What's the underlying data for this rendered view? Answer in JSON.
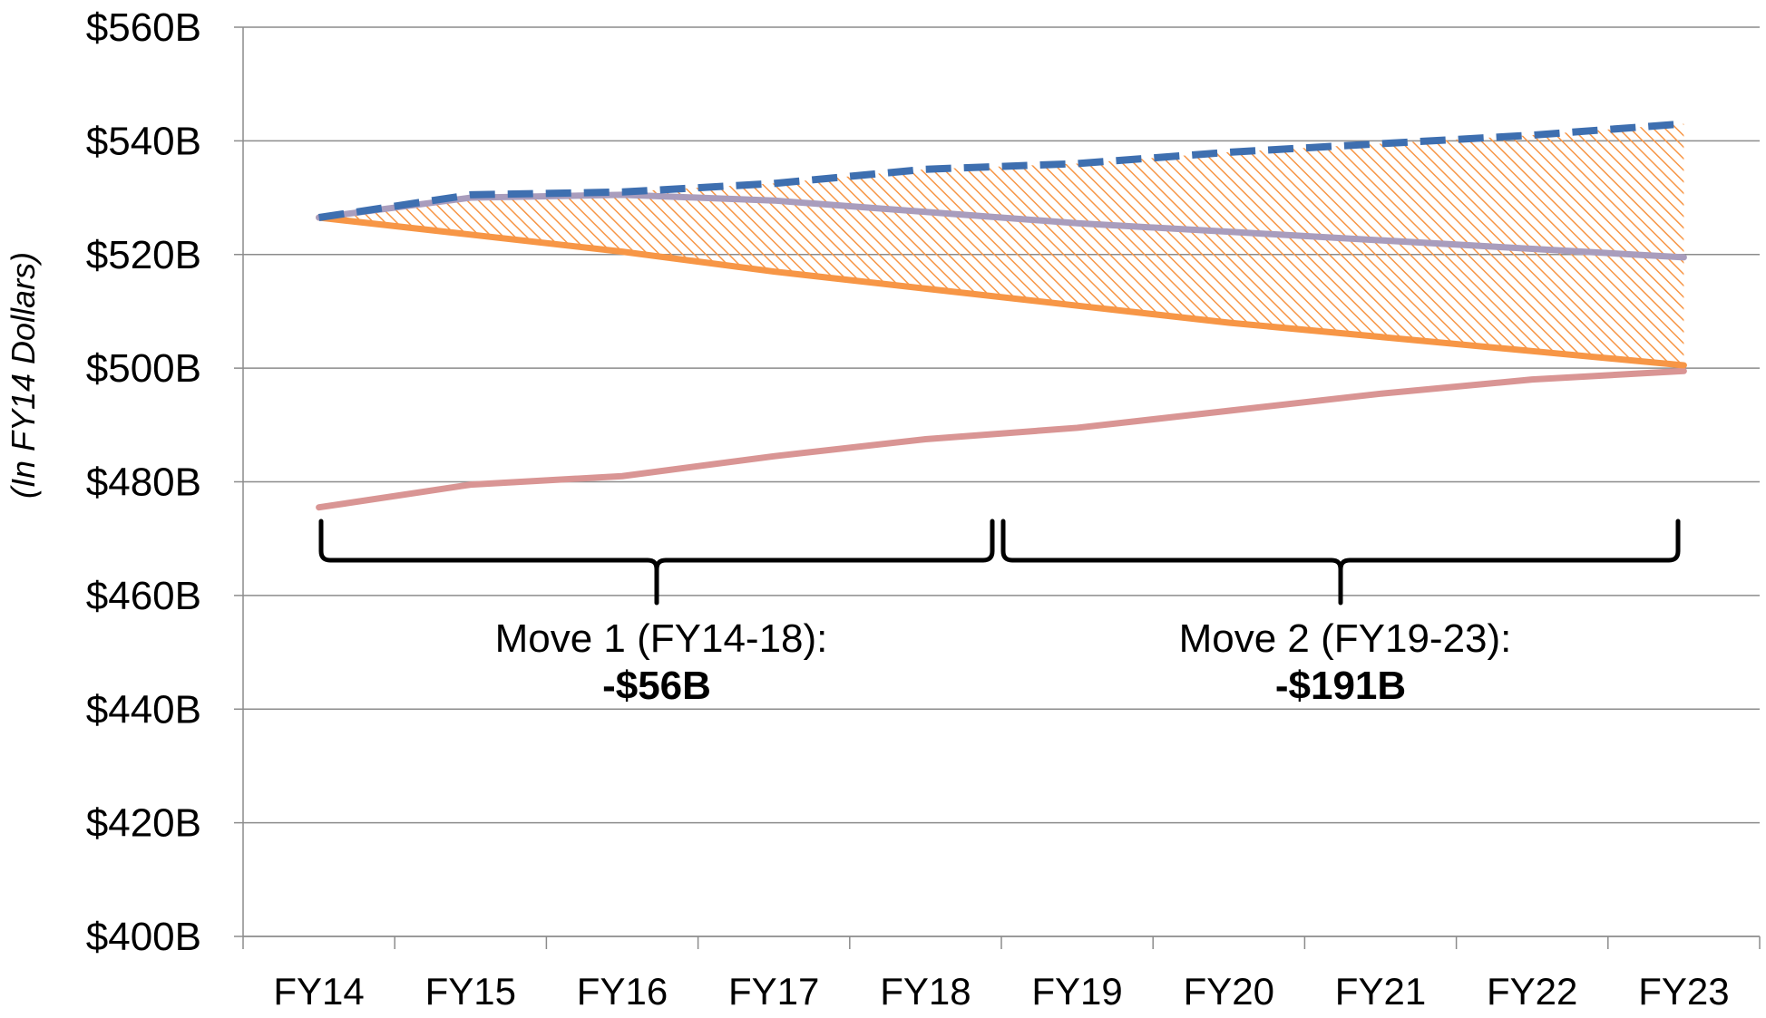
{
  "chart_data": {
    "type": "line",
    "ylabel": "(In FY14 Dollars)",
    "ylim": [
      400,
      560
    ],
    "y_ticks": [
      "$400B",
      "$420B",
      "$440B",
      "$460B",
      "$480B",
      "$500B",
      "$520B",
      "$540B",
      "$560B"
    ],
    "grid": true,
    "categories": [
      "FY14",
      "FY15",
      "FY16",
      "FY17",
      "FY18",
      "FY19",
      "FY20",
      "FY21",
      "FY22",
      "FY23"
    ],
    "series": [
      {
        "values": [
          526.5,
          530.5,
          531,
          532.5,
          535,
          536,
          538,
          539.5,
          541,
          543
        ],
        "color": "#3e6fb0",
        "style": "dashed"
      },
      {
        "values": [
          526.5,
          530,
          530.5,
          529.5,
          527.5,
          525.5,
          524,
          522.5,
          521,
          519.5
        ],
        "color": "#a99dbd",
        "style": "solid"
      },
      {
        "values": [
          526.5,
          523.5,
          520.5,
          517,
          514,
          511,
          508,
          505.5,
          503,
          500.5
        ],
        "color": "#f79646",
        "style": "solid"
      },
      {
        "values": [
          475.5,
          479.5,
          481,
          484.5,
          487.5,
          489.5,
          492.5,
          495.5,
          498,
          499.5
        ],
        "color": "#d99594",
        "style": "solid"
      }
    ],
    "shaded_region": {
      "between": [
        0,
        2
      ],
      "color": "#f79646",
      "pattern": "diagonal-hatch"
    },
    "annotations": [
      {
        "label": "Move 1 (FY14-18):",
        "value": "-$56B",
        "range": [
          "FY14",
          "FY18"
        ]
      },
      {
        "label": "Move 2 (FY19-23):",
        "value": "-$191B",
        "range": [
          "FY19",
          "FY23"
        ]
      }
    ]
  }
}
